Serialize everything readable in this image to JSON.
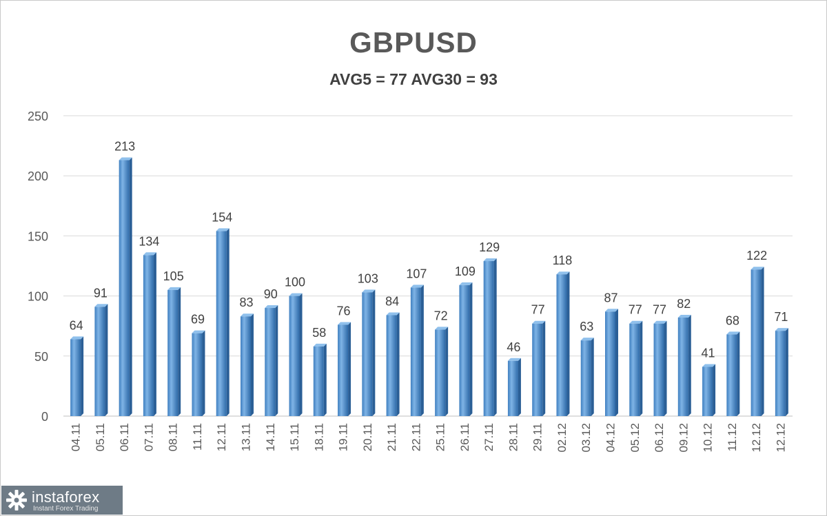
{
  "brand": {
    "name": "instaforex",
    "tagline": "Instant Forex Trading",
    "logo_icon": "gear-icon",
    "logo_bg": "#6e7b86"
  },
  "chart_data": {
    "type": "bar",
    "title": "GBPUSD",
    "subtitle": "AVG5 = 77 AVG30 = 93",
    "xlabel": "",
    "ylabel": "",
    "ylim": [
      0,
      250
    ],
    "yticks": [
      0,
      50,
      100,
      150,
      200,
      250
    ],
    "grid": true,
    "legend": "none",
    "bar_color": "#5b9bd5",
    "categories": [
      "04.11",
      "05.11",
      "06.11",
      "07.11",
      "08.11",
      "11.11",
      "12.11",
      "13.11",
      "14.11",
      "15.11",
      "18.11",
      "19.11",
      "20.11",
      "21.11",
      "22.11",
      "25.11",
      "26.11",
      "27.11",
      "28.11",
      "29.11",
      "02.12",
      "03.12",
      "04.12",
      "05.12",
      "06.12",
      "09.12",
      "10.12",
      "11.12",
      "12.12",
      "12.12"
    ],
    "values": [
      64,
      91,
      213,
      134,
      105,
      69,
      154,
      83,
      90,
      100,
      58,
      76,
      103,
      84,
      107,
      72,
      109,
      129,
      46,
      77,
      118,
      63,
      87,
      77,
      77,
      82,
      41,
      68,
      122,
      71
    ]
  }
}
